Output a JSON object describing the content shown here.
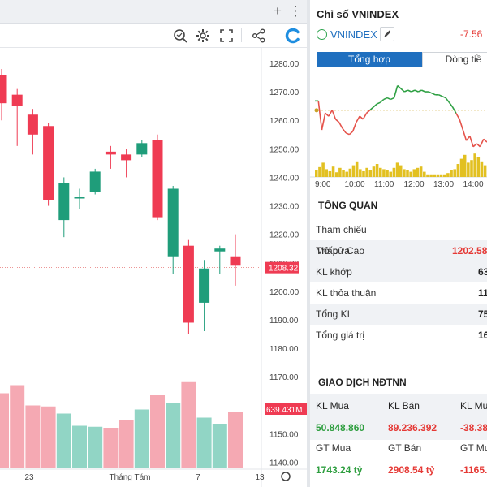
{
  "toolbar": {
    "icons": [
      "plus-icon",
      "more-vertical-icon",
      "magnifier-icon",
      "settings-icon",
      "fullscreen-icon",
      "share-icon",
      "brand-logo-icon"
    ]
  },
  "chart_data": {
    "type": "candlestick",
    "y_ticks": [
      "1280.00",
      "1270.00",
      "1260.00",
      "1250.00",
      "1240.00",
      "1230.00",
      "1220.00",
      "1210.00",
      "1200.00",
      "1190.00",
      "1180.00",
      "1170.00",
      "1160.00",
      "1150.00",
      "1140.00"
    ],
    "ylim": [
      1137,
      1284
    ],
    "x_labels": [
      "23",
      "Tháng Tám",
      "7",
      "13"
    ],
    "current_price_label": "1208.32",
    "current_price": 1208.32,
    "volume_label": "639.431M",
    "colors": {
      "up": "#1f9d7a",
      "down": "#ef3b53",
      "vol_up": "#91d5c5",
      "vol_down": "#f5a9b3"
    },
    "candles": [
      {
        "open": 1276,
        "high": 1278,
        "low": 1260,
        "close": 1266
      },
      {
        "open": 1269,
        "high": 1271,
        "low": 1251,
        "close": 1265
      },
      {
        "open": 1262,
        "high": 1264,
        "low": 1248,
        "close": 1255
      },
      {
        "open": 1258,
        "high": 1259,
        "low": 1230,
        "close": 1232
      },
      {
        "open": 1225,
        "high": 1240,
        "low": 1219,
        "close": 1238
      },
      {
        "open": 1233,
        "high": 1236,
        "low": 1229,
        "close": 1233
      },
      {
        "open": 1235,
        "high": 1243,
        "low": 1234,
        "close": 1242
      },
      {
        "open": 1249,
        "high": 1251,
        "low": 1243,
        "close": 1248
      },
      {
        "open": 1248,
        "high": 1250,
        "low": 1240,
        "close": 1246
      },
      {
        "open": 1248,
        "high": 1253,
        "low": 1247,
        "close": 1252
      },
      {
        "open": 1253,
        "high": 1255,
        "low": 1225,
        "close": 1226
      },
      {
        "open": 1212,
        "high": 1237,
        "low": 1206,
        "close": 1236
      },
      {
        "open": 1216,
        "high": 1218,
        "low": 1185,
        "close": 1189
      },
      {
        "open": 1196,
        "high": 1211,
        "low": 1186,
        "close": 1208
      },
      {
        "open": 1214,
        "high": 1216,
        "low": 1206,
        "close": 1215
      },
      {
        "open": 1212,
        "high": 1220,
        "low": 1202,
        "close": 1209
      }
    ],
    "volumes": [
      0.74,
      0.82,
      0.62,
      0.61,
      0.54,
      0.42,
      0.41,
      0.4,
      0.48,
      0.58,
      0.72,
      0.64,
      0.85,
      0.5,
      0.44,
      0.56
    ]
  },
  "index_panel": {
    "title": "Chỉ số VNINDEX",
    "symbol": "VNINDEX",
    "change": "-7.56",
    "tabs": [
      "Tổng hợp",
      "Dòng tiề"
    ]
  },
  "mini_chart": {
    "type": "line",
    "x_labels": [
      "9:00",
      "10:00",
      "11:00",
      "12:00",
      "13:00",
      "14:00"
    ],
    "reference": 1215.88,
    "colors": {
      "above": "#2ea043",
      "below": "#e5534b",
      "volume": "#e2c021",
      "reference": "#c9a227"
    },
    "intraday": [
      [
        0,
        1222
      ],
      [
        1,
        1222
      ],
      [
        2,
        1203
      ],
      [
        3,
        1214
      ],
      [
        4,
        1212
      ],
      [
        5,
        1216
      ],
      [
        6,
        1210
      ],
      [
        7,
        1208
      ],
      [
        8,
        1204
      ],
      [
        9,
        1201
      ],
      [
        10,
        1200
      ],
      [
        11,
        1202
      ],
      [
        12,
        1208
      ],
      [
        13,
        1212
      ],
      [
        14,
        1210
      ],
      [
        15,
        1214
      ],
      [
        16,
        1216
      ],
      [
        17,
        1218
      ],
      [
        18,
        1220
      ],
      [
        19,
        1221
      ],
      [
        20,
        1223
      ],
      [
        21,
        1224
      ],
      [
        22,
        1223
      ],
      [
        23,
        1224
      ],
      [
        24,
        1232
      ],
      [
        25,
        1230
      ],
      [
        26,
        1228
      ],
      [
        27,
        1229
      ],
      [
        28,
        1228
      ],
      [
        29,
        1229
      ],
      [
        30,
        1228
      ],
      [
        31,
        1229
      ],
      [
        32,
        1228
      ],
      [
        33,
        1228
      ],
      [
        34,
        1227
      ],
      [
        35,
        1226
      ],
      [
        36,
        1226
      ],
      [
        37,
        1225
      ],
      [
        38,
        1224
      ],
      [
        39,
        1221
      ],
      [
        40,
        1218
      ],
      [
        41,
        1214
      ],
      [
        42,
        1210
      ],
      [
        43,
        1203
      ],
      [
        44,
        1196
      ],
      [
        45,
        1199
      ],
      [
        46,
        1192
      ],
      [
        47,
        1194
      ],
      [
        48,
        1192
      ],
      [
        49,
        1197
      ],
      [
        50,
        1195
      ]
    ],
    "volume": [
      0.25,
      0.38,
      0.55,
      0.3,
      0.22,
      0.4,
      0.18,
      0.35,
      0.28,
      0.2,
      0.32,
      0.45,
      0.6,
      0.3,
      0.22,
      0.35,
      0.28,
      0.4,
      0.5,
      0.35,
      0.3,
      0.25,
      0.2,
      0.35,
      0.55,
      0.45,
      0.3,
      0.25,
      0.2,
      0.3,
      0.35,
      0.4,
      0.2,
      0.1,
      0.1,
      0.1,
      0.1,
      0.1,
      0.1,
      0.15,
      0.25,
      0.3,
      0.5,
      0.7,
      0.85,
      0.55,
      0.65,
      0.9,
      0.75,
      0.6,
      0.45
    ]
  },
  "overview": {
    "title": "TỔNG QUAN",
    "rows": [
      {
        "label": "Tham chiếu",
        "value": ""
      },
      {
        "label": "Mở cửa",
        "value": ""
      },
      {
        "label": "Thấp - Cao",
        "value": "1202.58"
      },
      {
        "label": "KL khớp",
        "value": "63"
      },
      {
        "label": "KL thỏa thuận",
        "value": "11"
      },
      {
        "label": "Tổng KL",
        "value": "75"
      },
      {
        "label": "Tổng giá trị",
        "value": "16"
      }
    ]
  },
  "foreign": {
    "title": "GIAO DỊCH NĐTNN",
    "headers1": [
      "KL Mua",
      "KL Bán",
      "KL Mua"
    ],
    "values1": [
      "50.848.860",
      "89.236.392",
      "-38.38"
    ],
    "headers2": [
      "GT Mua",
      "GT Bán",
      "GT Mua"
    ],
    "values2": [
      "1743.24 tỷ",
      "2908.54 tỷ",
      "-1165."
    ]
  }
}
